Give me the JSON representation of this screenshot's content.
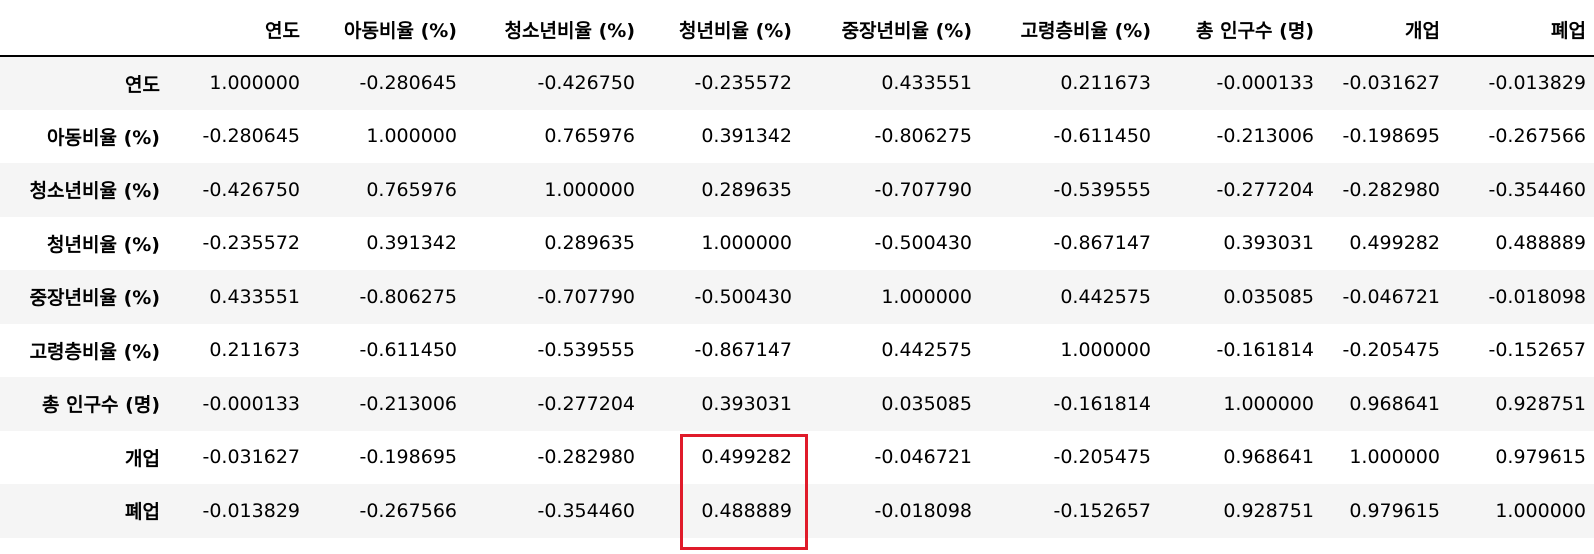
{
  "table": {
    "columns": [
      "",
      "연도",
      "아동비율 (%)",
      "청소년비율 (%)",
      "청년비율 (%)",
      "중장년비율 (%)",
      "고령층비율 (%)",
      "총 인구수 (명)",
      "개업",
      "폐업"
    ],
    "rows": [
      {
        "label": "연도",
        "cells": [
          "1.000000",
          "-0.280645",
          "-0.426750",
          "-0.235572",
          "0.433551",
          "0.211673",
          "-0.000133",
          "-0.031627",
          "-0.013829"
        ]
      },
      {
        "label": "아동비율 (%)",
        "cells": [
          "-0.280645",
          "1.000000",
          "0.765976",
          "0.391342",
          "-0.806275",
          "-0.611450",
          "-0.213006",
          "-0.198695",
          "-0.267566"
        ]
      },
      {
        "label": "청소년비율 (%)",
        "cells": [
          "-0.426750",
          "0.765976",
          "1.000000",
          "0.289635",
          "-0.707790",
          "-0.539555",
          "-0.277204",
          "-0.282980",
          "-0.354460"
        ]
      },
      {
        "label": "청년비율 (%)",
        "cells": [
          "-0.235572",
          "0.391342",
          "0.289635",
          "1.000000",
          "-0.500430",
          "-0.867147",
          "0.393031",
          "0.499282",
          "0.488889"
        ]
      },
      {
        "label": "중장년비율 (%)",
        "cells": [
          "0.433551",
          "-0.806275",
          "-0.707790",
          "-0.500430",
          "1.000000",
          "0.442575",
          "0.035085",
          "-0.046721",
          "-0.018098"
        ]
      },
      {
        "label": "고령층비율 (%)",
        "cells": [
          "0.211673",
          "-0.611450",
          "-0.539555",
          "-0.867147",
          "0.442575",
          "1.000000",
          "-0.161814",
          "-0.205475",
          "-0.152657"
        ]
      },
      {
        "label": "총 인구수 (명)",
        "cells": [
          "-0.000133",
          "-0.213006",
          "-0.277204",
          "0.393031",
          "0.035085",
          "-0.161814",
          "1.000000",
          "0.968641",
          "0.928751"
        ]
      },
      {
        "label": "개업",
        "cells": [
          "-0.031627",
          "-0.198695",
          "-0.282980",
          "0.499282",
          "-0.046721",
          "-0.205475",
          "0.968641",
          "1.000000",
          "0.979615"
        ]
      },
      {
        "label": "폐업",
        "cells": [
          "-0.013829",
          "-0.267566",
          "-0.354460",
          "0.488889",
          "-0.018098",
          "-0.152657",
          "0.928751",
          "0.979615",
          "1.000000"
        ]
      }
    ]
  },
  "highlight": {
    "color": "#e01b2a"
  }
}
